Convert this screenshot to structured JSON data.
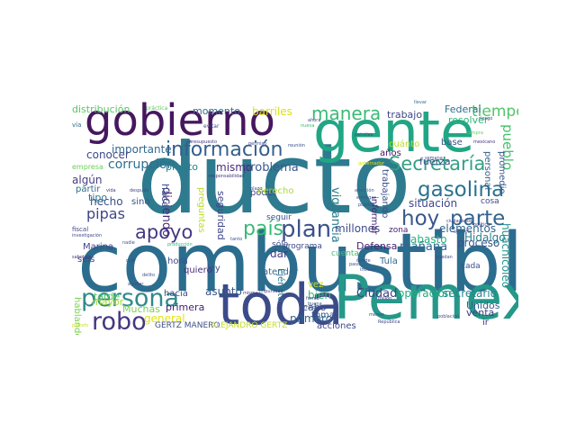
{
  "palette": [
    "#440154",
    "#482878",
    "#3e4a89",
    "#31688e",
    "#26828e",
    "#1f9e89",
    "#35b779",
    "#6ece58",
    "#b5de2b",
    "#fde725"
  ],
  "words": [
    {
      "key": "ducto",
      "text": "ducto",
      "color": "#2e7a8e"
    },
    {
      "key": "combustible",
      "text": "combustible",
      "color": "#2b6d8e"
    },
    {
      "key": "gente",
      "text": "gente",
      "color": "#21a685"
    },
    {
      "key": "gobierno",
      "text": "gobierno",
      "color": "#46175f"
    },
    {
      "key": "toda",
      "text": "toda",
      "color": "#3b4b8a"
    },
    {
      "key": "pemex",
      "text": "Pemex",
      "color": "#25988a"
    },
    {
      "key": "persona",
      "text": "persona",
      "color": "#2f8a8c"
    },
    {
      "key": "robo",
      "text": "robo",
      "color": "#453781"
    },
    {
      "key": "informacion",
      "text": "información",
      "color": "#355f8d"
    },
    {
      "key": "manera",
      "text": "manera",
      "color": "#3bbb75"
    },
    {
      "key": "secretaria",
      "text": "Secretaría",
      "color": "#35a086"
    },
    {
      "key": "gasolina",
      "text": "gasolina",
      "color": "#2c728e"
    },
    {
      "key": "hoy",
      "text": "hoy",
      "color": "#39568c"
    },
    {
      "key": "parte",
      "text": "parte",
      "color": "#33638d"
    },
    {
      "key": "pais",
      "text": "país",
      "color": "#39b977"
    },
    {
      "key": "plan",
      "text": "plan",
      "color": "#3b528b"
    },
    {
      "key": "apoyo",
      "text": "apoyo",
      "color": "#443983"
    },
    {
      "key": "tiempo",
      "text": "tiempo",
      "color": "#52c569"
    },
    {
      "key": "pueblo",
      "text": "pueblo",
      "color": "#47c16e"
    },
    {
      "key": "corrupcion",
      "text": "corrupción",
      "color": "#2d708e"
    },
    {
      "key": "trabajo",
      "text": "trabajo",
      "color": "#3f4788"
    },
    {
      "key": "federal",
      "text": "Federal",
      "color": "#2e6e8e"
    },
    {
      "key": "resolver",
      "text": "resolver",
      "color": "#30b57a"
    },
    {
      "key": "importante",
      "text": "importante",
      "color": "#30698e"
    },
    {
      "key": "conocer",
      "text": "conocer",
      "color": "#3f4889"
    },
    {
      "key": "problema",
      "text": "problema",
      "color": "#38598c"
    },
    {
      "key": "mismo",
      "text": "mismo",
      "color": "#472c7a"
    },
    {
      "key": "situacion",
      "text": "situación",
      "color": "#404588"
    },
    {
      "key": "elementos",
      "text": "elementos",
      "color": "#32648e"
    },
    {
      "key": "hidalgo",
      "text": "Hidalgo",
      "color": "#26818e"
    },
    {
      "key": "abasto",
      "text": "abasto",
      "color": "#2ab07f"
    },
    {
      "key": "vigilancia",
      "text": "vigilancia",
      "color": "#287c8e"
    },
    {
      "key": "pipas",
      "text": "pipas",
      "color": "#414487"
    },
    {
      "key": "hecho",
      "text": "hecho",
      "color": "#3c4f8a"
    },
    {
      "key": "millones",
      "text": "millones",
      "color": "#3e4c8a"
    },
    {
      "key": "mayor",
      "text": "mayor",
      "color": "#a2da37"
    },
    {
      "key": "ciudad",
      "text": "Ciudad",
      "color": "#404387"
    },
    {
      "key": "operacion",
      "text": "operación",
      "color": "#25ab82"
    },
    {
      "key": "secretario",
      "text": "secretario",
      "color": "#24868e"
    },
    {
      "key": "defensa",
      "text": "Defensa",
      "color": "#482475"
    },
    {
      "key": "manana",
      "text": "mañana",
      "color": "#31668e"
    },
    {
      "key": "proceso",
      "text": "proceso",
      "color": "#3a538b"
    },
    {
      "key": "huachicoleo",
      "text": "huachicoleo",
      "color": "#20928c"
    },
    {
      "key": "distribucion",
      "text": "distribución",
      "color": "#58c765"
    },
    {
      "key": "momento",
      "text": "momento",
      "color": "#2e6f8e"
    },
    {
      "key": "barriles",
      "text": "barriles",
      "color": "#d8e219"
    },
    {
      "key": "general",
      "text": "general",
      "color": "#e2e418"
    },
    {
      "key": "gertz_manero",
      "text": "GERTZ MANERO",
      "color": "#3c508b"
    },
    {
      "key": "alejandro_gertz",
      "text": "ALEJANDRO GERTZ",
      "color": "#c2df23"
    },
    {
      "key": "muchas",
      "text": "Muchas",
      "color": "#7ad151"
    },
    {
      "key": "primera",
      "text": "primera",
      "color": "#482071"
    },
    {
      "key": "primero",
      "text": "primero",
      "color": "#31678e"
    },
    {
      "key": "asunto",
      "text": "asunto",
      "color": "#38598c"
    },
    {
      "key": "hacia",
      "text": "hacia",
      "color": "#3f4889"
    },
    {
      "key": "bien",
      "text": "bien",
      "color": "#37b878"
    },
    {
      "key": "cabo",
      "text": "cabo",
      "color": "#3b518b"
    },
    {
      "key": "programa",
      "text": "programa",
      "color": "#3e4989"
    },
    {
      "key": "toma",
      "text": "toma",
      "color": "#38588c"
    },
    {
      "key": "acciones",
      "text": "acciones",
      "color": "#3f4889"
    },
    {
      "key": "tula",
      "text": "Tula",
      "color": "#31678e"
    },
    {
      "key": "zona",
      "text": "zona",
      "color": "#482173"
    },
    {
      "key": "cada",
      "text": "cada",
      "color": "#3c508b"
    },
    {
      "key": "venta",
      "text": "venta",
      "color": "#453781"
    },
    {
      "key": "unidos",
      "text": "Unidos",
      "color": "#34608d"
    },
    {
      "key": "ir",
      "text": "ir",
      "color": "#463480"
    },
    {
      "key": "tarde",
      "text": "tarde",
      "color": "#5ac864"
    },
    {
      "key": "tipo",
      "text": "tipo",
      "color": "#2a778e"
    },
    {
      "key": "seis",
      "text": "seis",
      "color": "#3e4989"
    },
    {
      "key": "partir",
      "text": "partir",
      "color": "#2e6e8e"
    },
    {
      "key": "marina",
      "text": "Marina",
      "color": "#3f4889"
    },
    {
      "key": "hablando",
      "text": "hablando",
      "color": "#7ad151"
    },
    {
      "key": "empresa",
      "text": "empresa",
      "color": "#6ccd5a"
    },
    {
      "key": "algun",
      "text": "algún",
      "color": "#433e85"
    },
    {
      "key": "pronto",
      "text": "pronto",
      "color": "#26828e"
    },
    {
      "key": "sino",
      "text": "sino",
      "color": "#3b528b"
    },
    {
      "key": "hora",
      "text": "hora",
      "color": "#3e4989"
    },
    {
      "key": "quiero",
      "text": "quiero",
      "color": "#472d7b"
    },
    {
      "key": "ley",
      "text": "ley",
      "color": "#3c508b"
    },
    {
      "key": "dar",
      "text": "dar",
      "color": "#443a83"
    },
    {
      "key": "atender",
      "text": "atender",
      "color": "#31688e"
    },
    {
      "key": "seguir",
      "text": "seguir",
      "color": "#3a548c"
    },
    {
      "key": "solo",
      "text": "sólo",
      "color": "#3e4a89"
    },
    {
      "key": "vez",
      "text": "vez",
      "color": "#d0e11c"
    },
    {
      "key": "ejercito",
      "text": "Ejército",
      "color": "#2a788e"
    },
    {
      "key": "cuenta",
      "text": "cuenta",
      "color": "#46c06f"
    },
    {
      "key": "poder",
      "text": "poder",
      "color": "#414287"
    },
    {
      "key": "derecho",
      "text": "derecho",
      "color": "#a8db34"
    },
    {
      "key": "seguridad",
      "text": "seguridad",
      "color": "#3f4788"
    },
    {
      "key": "diciendo",
      "text": "diciendo",
      "color": "#472c7a"
    },
    {
      "key": "hace",
      "text": "hace",
      "color": "#3b528b"
    },
    {
      "key": "preguntas",
      "text": "preguntas",
      "color": "#b8de29"
    },
    {
      "key": "informar",
      "text": "informar",
      "color": "#482576"
    },
    {
      "key": "trabajando",
      "text": "trabajando",
      "color": "#3b518b"
    },
    {
      "key": "fuerza",
      "text": "fuerza",
      "color": "#3d4d8a"
    },
    {
      "key": "anos",
      "text": "años",
      "color": "#471063"
    },
    {
      "key": "personal",
      "text": "personal",
      "color": "#34618d"
    },
    {
      "key": "promedio",
      "text": "promedio",
      "color": "#39568c"
    },
    {
      "key": "base",
      "text": "base",
      "color": "#3a548c"
    },
    {
      "key": "cuanto",
      "text": "cuánto",
      "color": "#bddf26"
    },
    {
      "key": "cosa",
      "text": "cosa",
      "color": "#3e4a89"
    },
    {
      "key": "via",
      "text": "vía",
      "color": "#2e6e8e"
    },
    {
      "key": "practica",
      "text": "práctica",
      "color": "#5cc863"
    },
    {
      "key": "evitar",
      "text": "evitar",
      "color": "#3f4788"
    },
    {
      "key": "presupuesto",
      "text": "presupuesto",
      "color": "#453882"
    },
    {
      "key": "permiso",
      "text": "permiso",
      "color": "#3e4a89"
    },
    {
      "key": "nueva",
      "text": "nueva",
      "color": "#3bbb75"
    },
    {
      "key": "llevar",
      "text": "llevar",
      "color": "#2f6b8e"
    },
    {
      "key": "petroleo",
      "text": "petróleo",
      "color": "#3b528b"
    },
    {
      "key": "gobernador",
      "text": "gobernador",
      "color": "#d8e219"
    },
    {
      "key": "riesgo",
      "text": "riesgo",
      "color": "#3f4788"
    },
    {
      "key": "compra",
      "text": "compra",
      "color": "#6ccd5a"
    },
    {
      "key": "mexicano",
      "text": "mexicano",
      "color": "#453581"
    },
    {
      "key": "semana",
      "text": "semana",
      "color": "#3d4e8a"
    },
    {
      "key": "atencion",
      "text": "atención",
      "color": "#38598c"
    },
    {
      "key": "entregar",
      "text": "entregar",
      "color": "#3b528b"
    },
    {
      "key": "publica",
      "text": "pública",
      "color": "#3e4a89"
    },
    {
      "key": "responsabilidad",
      "text": "responsabilidad",
      "color": "#463480"
    },
    {
      "key": "despues",
      "text": "después",
      "color": "#3f4889"
    },
    {
      "key": "vida",
      "text": "vida",
      "color": "#453781"
    },
    {
      "key": "fiscal",
      "text": "fiscal",
      "color": "#3f4788"
    },
    {
      "key": "investigacion",
      "text": "investigación",
      "color": "#3e4989"
    },
    {
      "key": "produccion",
      "text": "producción",
      "color": "#35b779"
    },
    {
      "key": "delito",
      "text": "delito",
      "color": "#3b528b"
    },
    {
      "key": "ayudar",
      "text": "ayudar",
      "color": "#3f4889"
    },
    {
      "key": "sabotaje",
      "text": "sabotaje",
      "color": "#453781"
    },
    {
      "key": "nadie",
      "text": "nadie",
      "color": "#38598c"
    },
    {
      "key": "cual",
      "text": "cuál",
      "color": "#3e4a89"
    },
    {
      "key": "tanto",
      "text": "tanto",
      "color": "#3b528b"
    },
    {
      "key": "misma",
      "text": "misma",
      "color": "#453882"
    },
    {
      "key": "impunidad",
      "text": "impunidad",
      "color": "#3f4788"
    },
    {
      "key": "mejor",
      "text": "mejor",
      "color": "#3b528b"
    },
    {
      "key": "forma",
      "text": "forma",
      "color": "#3f4889"
    },
    {
      "key": "buena",
      "text": "buena",
      "color": "#38598c"
    },
    {
      "key": "paso",
      "text": "paso",
      "color": "#3e4a89"
    },
    {
      "key": "incluso",
      "text": "incluso",
      "color": "#3b528b"
    },
    {
      "key": "millon",
      "text": "millón",
      "color": "#453781"
    },
    {
      "key": "menos",
      "text": "menos",
      "color": "#3f4788"
    },
    {
      "key": "republica",
      "text": "República",
      "color": "#3e4989"
    },
    {
      "key": "poblacion",
      "text": "población",
      "color": "#3b528b"
    },
    {
      "key": "ciudadanos",
      "text": "ciudadanos",
      "color": "#3f4889"
    },
    {
      "key": "politica",
      "text": "política",
      "color": "#453781"
    },
    {
      "key": "ejemplo",
      "text": "ejemplo",
      "color": "#38598c"
    },
    {
      "key": "puedan",
      "text": "puedan",
      "color": "#3e4a89"
    },
    {
      "key": "reunion",
      "text": "reunión",
      "color": "#3b528b"
    },
    {
      "key": "ahora",
      "text": "ahora",
      "color": "#3f4788"
    },
    {
      "key": "parrafo",
      "text": "párrafo",
      "color": "#cde11d"
    },
    {
      "key": "donde",
      "text": "donde",
      "color": "#3e4989"
    },
    {
      "key": "plazo",
      "text": "plazo",
      "color": "#3b528b"
    }
  ]
}
